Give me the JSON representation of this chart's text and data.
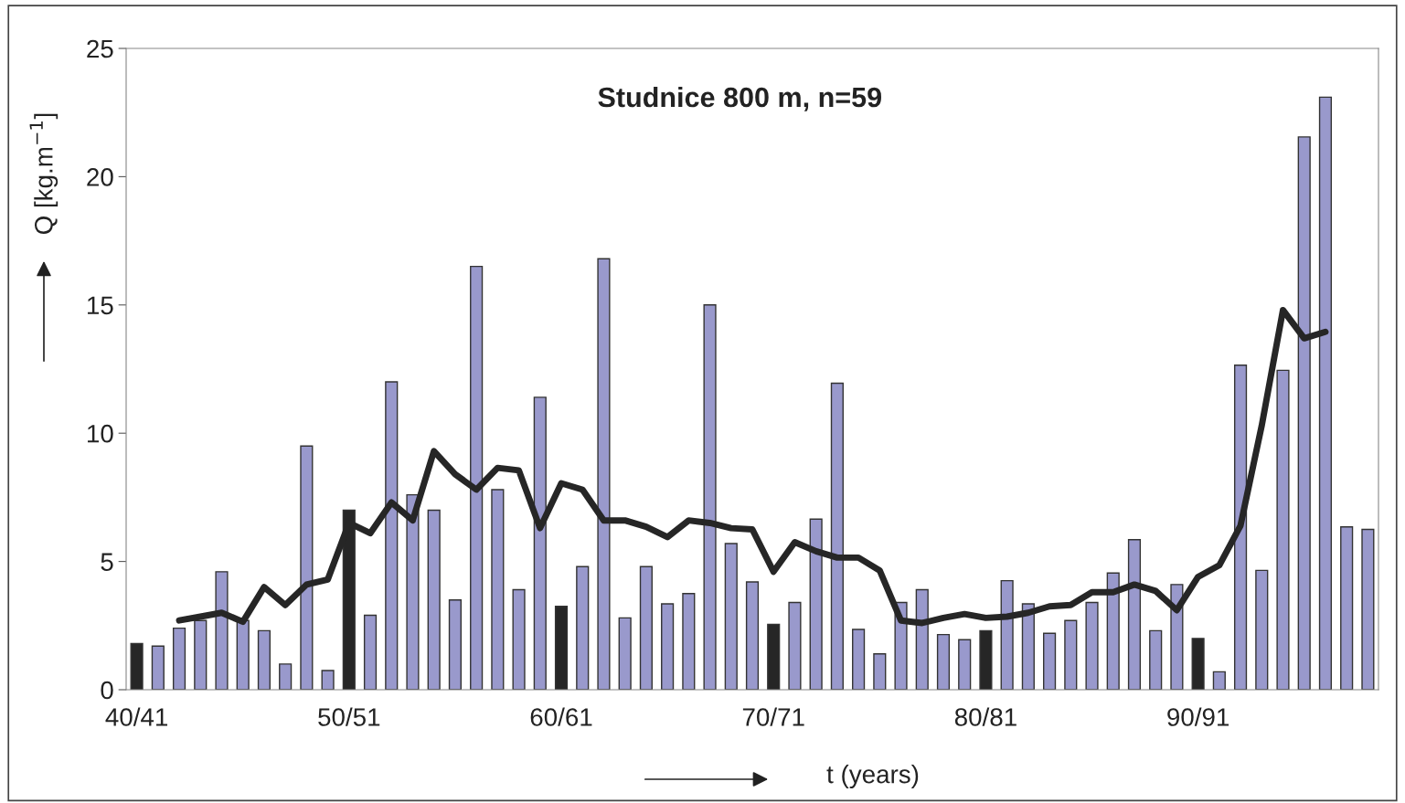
{
  "chart_data": {
    "type": "bar",
    "title": "Studnice 800 m, n=59",
    "xlabel": "t (years)",
    "ylabel": "Q [kg.m$^{−1}$]",
    "categories": [
      "40/41",
      null,
      null,
      null,
      null,
      null,
      null,
      null,
      null,
      null,
      "50/51",
      null,
      null,
      null,
      null,
      null,
      null,
      null,
      null,
      null,
      "60/61",
      null,
      null,
      null,
      null,
      null,
      null,
      null,
      null,
      null,
      "70/71",
      null,
      null,
      null,
      null,
      null,
      null,
      null,
      null,
      null,
      "80/81",
      null,
      null,
      null,
      null,
      null,
      null,
      null,
      null,
      null,
      "90/91",
      null,
      null,
      null,
      null,
      null,
      null,
      null,
      null
    ],
    "series": [
      {
        "colors": [
          "#262626",
          "#9999cc",
          "#9999cc",
          "#9999cc",
          "#9999cc",
          "#9999cc",
          "#9999cc",
          "#9999cc",
          "#9999cc",
          "#9999cc",
          "#262626",
          "#9999cc",
          "#9999cc",
          "#9999cc",
          "#9999cc",
          "#9999cc",
          "#9999cc",
          "#9999cc",
          "#9999cc",
          "#9999cc",
          "#262626",
          "#9999cc",
          "#9999cc",
          "#9999cc",
          "#9999cc",
          "#9999cc",
          "#9999cc",
          "#9999cc",
          "#9999cc",
          "#9999cc",
          "#262626",
          "#9999cc",
          "#9999cc",
          "#9999cc",
          "#9999cc",
          "#9999cc",
          "#9999cc",
          "#9999cc",
          "#9999cc",
          "#9999cc",
          "#262626",
          "#9999cc",
          "#9999cc",
          "#9999cc",
          "#9999cc",
          "#9999cc",
          "#9999cc",
          "#9999cc",
          "#9999cc",
          "#9999cc",
          "#262626",
          "#9999cc",
          "#9999cc",
          "#9999cc",
          "#9999cc",
          "#9999cc",
          "#9999cc",
          "#9999cc",
          "#9999cc"
        ],
        "values": [
          1.8,
          1.7,
          2.4,
          2.7,
          4.6,
          2.7,
          2.3,
          1.0,
          9.5,
          0.75,
          7.0,
          2.9,
          12.0,
          7.6,
          7.0,
          3.5,
          16.5,
          7.8,
          3.9,
          11.4,
          3.25,
          4.8,
          16.8,
          2.8,
          4.8,
          3.35,
          3.75,
          15.0,
          5.7,
          4.2,
          2.55,
          3.4,
          6.65,
          11.95,
          2.35,
          1.4,
          3.4,
          3.9,
          2.15,
          1.95,
          2.3,
          4.25,
          3.35,
          2.2,
          2.7,
          3.4,
          4.55,
          5.85,
          2.3,
          4.1,
          2.0,
          0.7,
          12.65,
          4.65,
          12.45,
          21.55,
          23.1,
          6.35,
          6.25
        ]
      },
      {
        "type": "line",
        "color": "#262626",
        "values": [
          null,
          null,
          2.7,
          2.85,
          3.0,
          2.65,
          4.0,
          3.3,
          4.1,
          4.3,
          6.5,
          6.1,
          7.3,
          6.6,
          9.3,
          8.4,
          7.8,
          8.65,
          8.55,
          6.3,
          8.05,
          7.8,
          6.6,
          6.6,
          6.35,
          5.95,
          6.6,
          6.5,
          6.3,
          6.25,
          4.6,
          5.75,
          5.4,
          5.15,
          5.15,
          4.65,
          2.7,
          2.6,
          2.8,
          2.95,
          2.8,
          2.85,
          3.0,
          3.25,
          3.3,
          3.8,
          3.8,
          4.1,
          3.85,
          3.1,
          4.4,
          4.85,
          6.4,
          10.3,
          14.8,
          13.7,
          13.95,
          null,
          null
        ]
      }
    ],
    "ylim": [
      0,
      25
    ],
    "yticks": [
      0,
      5,
      10,
      15,
      20,
      25
    ],
    "grid": false,
    "legend": false
  }
}
